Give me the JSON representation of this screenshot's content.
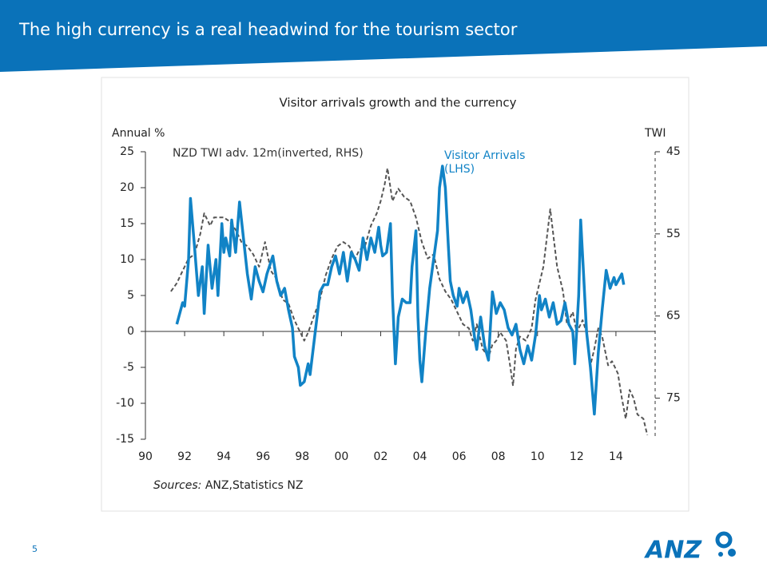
{
  "header": {
    "title": "The high currency is a real headwind for the tourism sector"
  },
  "page_number": "5",
  "logo": "ANZ",
  "source": {
    "label": "Sources:",
    "text": "ANZ,Statistics NZ"
  },
  "chart_data": {
    "type": "line",
    "title": "Visitor arrivals growth and the currency",
    "y_label": "Annual %",
    "y2_label": "TWI",
    "xlim": [
      1990,
      2016
    ],
    "xticks": [
      {
        "value": 1990,
        "label": "90"
      },
      {
        "value": 1992,
        "label": "92"
      },
      {
        "value": 1994,
        "label": "94"
      },
      {
        "value": 1996,
        "label": "96"
      },
      {
        "value": 1998,
        "label": "98"
      },
      {
        "value": 2000,
        "label": "00"
      },
      {
        "value": 2002,
        "label": "02"
      },
      {
        "value": 2004,
        "label": "04"
      },
      {
        "value": 2006,
        "label": "06"
      },
      {
        "value": 2008,
        "label": "08"
      },
      {
        "value": 2010,
        "label": "10"
      },
      {
        "value": 2012,
        "label": "12"
      },
      {
        "value": 2014,
        "label": "14"
      }
    ],
    "ylim": [
      -15,
      25
    ],
    "yticks": [
      -15,
      -10,
      -5,
      0,
      5,
      10,
      15,
      20,
      25
    ],
    "y2lim": [
      45,
      80
    ],
    "y2ticks": [
      45,
      55,
      65,
      75
    ],
    "y2_inverted": true,
    "series": [
      {
        "name": "NZD TWI adv. 12m(inverted, RHS)",
        "color": "#555555",
        "dashed": true,
        "axis": "y2",
        "x": [
          1991.3,
          1991.6,
          1991.9,
          1992.2,
          1992.5,
          1992.8,
          1993.0,
          1993.3,
          1993.5,
          1993.8,
          1994.0,
          1994.3,
          1994.6,
          1994.9,
          1995.2,
          1995.5,
          1995.8,
          1996.1,
          1996.4,
          1996.7,
          1997.0,
          1997.3,
          1997.6,
          1997.9,
          1998.1,
          1998.3,
          1998.6,
          1998.9,
          1999.2,
          1999.5,
          1999.8,
          2000.1,
          2000.4,
          2000.7,
          2000.9,
          2001.2,
          2001.5,
          2001.8,
          2002.0,
          2002.2,
          2002.35,
          2002.6,
          2002.9,
          2003.2,
          2003.5,
          2003.8,
          2004.1,
          2004.4,
          2004.7,
          2005.0,
          2005.3,
          2005.6,
          2005.9,
          2006.2,
          2006.5,
          2006.7,
          2006.9,
          2007.2,
          2007.5,
          2007.7,
          2007.9,
          2008.1,
          2008.4,
          2008.6,
          2008.75,
          2008.9,
          2009.1,
          2009.4,
          2009.7,
          2009.9,
          2010.1,
          2010.3,
          2010.5,
          2010.65,
          2010.8,
          2011.0,
          2011.3,
          2011.5,
          2011.8,
          2012.0,
          2012.3,
          2012.5,
          2012.7,
          2012.9,
          2013.1,
          2013.3,
          2013.6,
          2013.8,
          2014.1,
          2014.3,
          2014.5,
          2014.7,
          2014.9,
          2015.1,
          2015.4,
          2015.6
        ],
        "values": [
          62,
          61,
          59.5,
          58,
          57.5,
          55,
          52.5,
          54,
          53,
          53,
          53,
          53.5,
          54.5,
          56,
          56.5,
          57.5,
          59,
          56,
          59.5,
          60.5,
          63,
          63.5,
          65.5,
          67,
          68,
          67,
          65,
          63,
          60,
          58,
          56.5,
          56,
          56.5,
          58,
          57,
          56.5,
          54,
          52.5,
          51,
          49,
          47,
          51,
          49.5,
          50.5,
          51,
          53,
          56,
          58,
          57.5,
          60.5,
          62,
          63,
          64.5,
          66,
          66.5,
          68,
          66,
          69,
          70,
          68.5,
          68,
          67,
          68,
          71,
          73.5,
          69,
          67.5,
          68,
          66.5,
          63,
          61,
          59,
          55,
          52,
          55,
          59,
          62,
          66,
          64.5,
          67,
          65.5,
          67,
          71,
          69,
          66.5,
          67.5,
          71,
          70.5,
          72,
          75,
          77.5,
          74,
          75,
          77,
          77.5,
          79.5
        ]
      },
      {
        "name": "Visitor Arrivals (LHS)",
        "color": "#1183c6",
        "dashed": false,
        "axis": "y",
        "x": [
          1991.6,
          1991.9,
          1992.0,
          1992.2,
          1992.3,
          1992.5,
          1992.7,
          1992.9,
          1993.0,
          1993.2,
          1993.4,
          1993.6,
          1993.7,
          1993.9,
          1994.0,
          1994.1,
          1994.3,
          1994.4,
          1994.6,
          1994.8,
          1995.0,
          1995.2,
          1995.4,
          1995.6,
          1995.8,
          1996.0,
          1996.2,
          1996.5,
          1996.7,
          1996.9,
          1997.1,
          1997.3,
          1997.5,
          1997.6,
          1997.8,
          1997.9,
          1998.1,
          1998.3,
          1998.4,
          1998.6,
          1998.8,
          1998.9,
          1999.1,
          1999.3,
          1999.5,
          1999.7,
          1999.9,
          2000.1,
          2000.3,
          2000.5,
          2000.7,
          2000.9,
          2001.1,
          2001.3,
          2001.5,
          2001.7,
          2001.9,
          2002.0,
          2002.1,
          2002.3,
          2002.5,
          2002.6,
          2002.75,
          2002.9,
          2003.1,
          2003.3,
          2003.5,
          2003.6,
          2003.8,
          2003.9,
          2004.0,
          2004.1,
          2004.3,
          2004.5,
          2004.7,
          2004.9,
          2005.0,
          2005.15,
          2005.3,
          2005.45,
          2005.55,
          2005.7,
          2005.9,
          2006.0,
          2006.2,
          2006.4,
          2006.6,
          2006.8,
          2006.9,
          2007.1,
          2007.3,
          2007.5,
          2007.7,
          2007.9,
          2008.1,
          2008.3,
          2008.5,
          2008.7,
          2008.9,
          2009.1,
          2009.3,
          2009.5,
          2009.7,
          2009.9,
          2010.1,
          2010.2,
          2010.4,
          2010.6,
          2010.8,
          2011.0,
          2011.2,
          2011.4,
          2011.6,
          2011.8,
          2011.9,
          2012.1,
          2012.2,
          2012.35,
          2012.5,
          2012.7,
          2012.9,
          2013.1,
          2013.3,
          2013.5,
          2013.7,
          2013.9,
          2014.0,
          2014.1,
          2014.2,
          2014.3,
          2014.4
        ],
        "values": [
          1,
          4,
          3.5,
          10,
          18.5,
          12,
          5,
          9,
          2.5,
          12,
          6,
          10,
          5,
          15,
          11,
          13,
          10.5,
          15.5,
          11,
          18,
          13,
          8,
          4.5,
          9,
          7,
          5.5,
          8,
          10.5,
          7,
          5,
          6,
          3,
          0.5,
          -3.5,
          -5,
          -7.5,
          -7,
          -4.5,
          -6,
          -1.5,
          3,
          5.5,
          6.5,
          6.5,
          9,
          10.5,
          8,
          11,
          7,
          11,
          10,
          8.5,
          13,
          10,
          13,
          11,
          14.5,
          12,
          10.5,
          11,
          15,
          5,
          -4.5,
          2,
          4.5,
          4,
          4,
          9,
          14,
          2,
          -4,
          -7,
          0,
          6,
          10,
          14,
          20,
          23,
          20,
          12,
          7,
          5,
          3.5,
          6,
          4,
          5.5,
          3,
          -1,
          -2.5,
          2,
          -2,
          -4,
          5.5,
          2.5,
          4,
          3,
          0.5,
          -0.5,
          1,
          -2.5,
          -4.5,
          -2,
          -4,
          -0.5,
          5,
          3,
          4.5,
          2,
          4,
          1,
          1.5,
          4,
          1,
          0,
          -4.5,
          5,
          15.5,
          8,
          0,
          -5,
          -11.5,
          -3,
          3,
          8.5,
          6,
          7.5,
          6.5,
          7,
          7.5,
          8,
          6.5
        ]
      }
    ]
  }
}
